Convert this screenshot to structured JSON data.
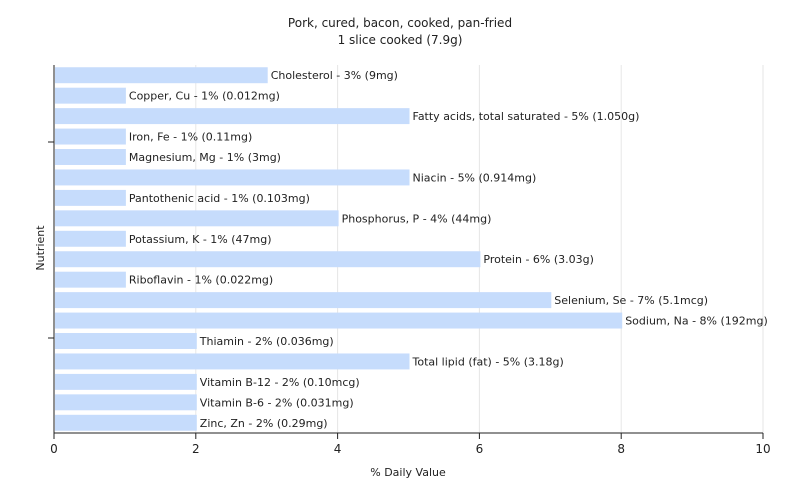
{
  "chart_data": {
    "type": "bar",
    "orientation": "horizontal",
    "title": "Pork, cured, bacon, cooked, pan-fried",
    "subtitle": "1 slice cooked (7.9g)",
    "xlabel": "% Daily Value",
    "ylabel": "Nutrient",
    "xlim": [
      0,
      10
    ],
    "xticks": [
      "0",
      "2",
      "4",
      "6",
      "8",
      "10"
    ],
    "grid": true,
    "bar_color": "#c6dcfc",
    "categories": [
      "Cholesterol",
      "Copper, Cu",
      "Fatty acids, total saturated",
      "Iron, Fe",
      "Magnesium, Mg",
      "Niacin",
      "Pantothenic acid",
      "Phosphorus, P",
      "Potassium, K",
      "Protein",
      "Riboflavin",
      "Selenium, Se",
      "Sodium, Na",
      "Thiamin",
      "Total lipid (fat)",
      "Vitamin B-12",
      "Vitamin B-6",
      "Zinc, Zn"
    ],
    "values": [
      3,
      1,
      5,
      1,
      1,
      5,
      1,
      4,
      1,
      6,
      1,
      7,
      8,
      2,
      5,
      2,
      2,
      2
    ],
    "labels": [
      "Cholesterol - 3% (9mg)",
      "Copper, Cu - 1% (0.012mg)",
      "Fatty acids, total saturated - 5% (1.050g)",
      "Iron, Fe - 1% (0.11mg)",
      "Magnesium, Mg - 1% (3mg)",
      "Niacin - 5% (0.914mg)",
      "Pantothenic acid - 1% (0.103mg)",
      "Phosphorus, P - 4% (44mg)",
      "Potassium, K - 1% (47mg)",
      "Protein - 6% (3.03g)",
      "Riboflavin - 1% (0.022mg)",
      "Selenium, Se - 7% (5.1mcg)",
      "Sodium, Na - 8% (192mg)",
      "Thiamin - 2% (0.036mg)",
      "Total lipid (fat) - 5% (3.18g)",
      "Vitamin B-12 - 2% (0.10mcg)",
      "Vitamin B-6 - 2% (0.031mg)",
      "Zinc, Zn - 2% (0.29mg)"
    ]
  }
}
